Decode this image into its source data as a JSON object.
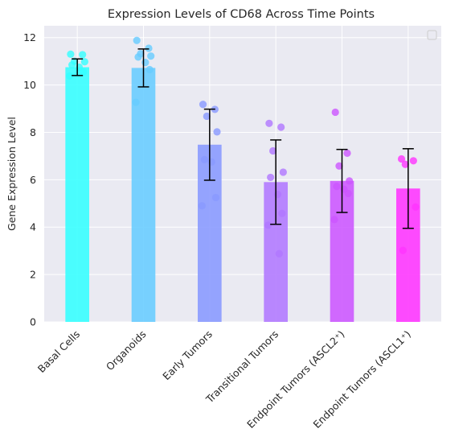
{
  "chart_data": {
    "type": "bar",
    "title": "Expression Levels of CD68 Across Time Points",
    "xlabel": "",
    "ylabel": "Gene Expression Level",
    "ylim": [
      0,
      12.5
    ],
    "yticks": [
      0,
      2,
      4,
      6,
      8,
      10,
      12
    ],
    "grid": true,
    "legend": {
      "placement": "top-right",
      "entries": []
    },
    "categories": [
      "Basal Cells",
      "Organoids",
      "Early Tumors",
      "Transitional Tumors",
      "Endpoint Tumors (ASCL2⁺)",
      "Endpoint Tumors (ASCL1⁺)"
    ],
    "values": [
      10.75,
      10.72,
      7.48,
      5.9,
      5.95,
      5.63
    ],
    "errors": [
      0.35,
      0.8,
      1.5,
      1.78,
      1.33,
      1.68
    ],
    "colors": [
      "#33ffff",
      "#66ccff",
      "#8899ff",
      "#b077ff",
      "#cc55ff",
      "#ff33ff"
    ],
    "points": [
      [
        11.3,
        11.28,
        11.0,
        10.98,
        10.85,
        10.75,
        10.55,
        10.38
      ],
      [
        11.88,
        11.55,
        11.32,
        11.22,
        11.18,
        10.95,
        10.65,
        9.27
      ],
      [
        9.18,
        8.97,
        8.68,
        8.02,
        6.85,
        6.75,
        5.25,
        4.9
      ],
      [
        8.38,
        8.22,
        7.22,
        6.32,
        6.1,
        5.38,
        4.58,
        4.08,
        2.88
      ],
      [
        8.85,
        7.12,
        6.58,
        5.95,
        5.72,
        5.6,
        5.42,
        4.32
      ],
      [
        6.88,
        6.8,
        6.65,
        4.85,
        3.02
      ]
    ]
  }
}
